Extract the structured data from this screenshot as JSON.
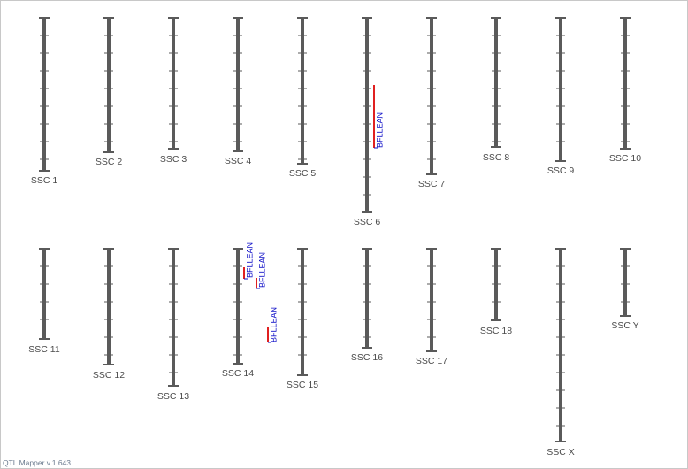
{
  "footer": "QTL Mapper v.1.643",
  "colors": {
    "chromosome": "#5a5a5a",
    "label": "#4a4a4a",
    "qtl_bar": "#e02020",
    "qtl_label": "#1010c8"
  },
  "chromosomes": [
    {
      "label": "SSC 1"
    },
    {
      "label": "SSC 2"
    },
    {
      "label": "SSC 3"
    },
    {
      "label": "SSC 4"
    },
    {
      "label": "SSC 5"
    },
    {
      "label": "SSC 6"
    },
    {
      "label": "SSC 7"
    },
    {
      "label": "SSC 8"
    },
    {
      "label": "SSC 9"
    },
    {
      "label": "SSC 10"
    },
    {
      "label": "SSC 11"
    },
    {
      "label": "SSC 12"
    },
    {
      "label": "SSC 13"
    },
    {
      "label": "SSC 14"
    },
    {
      "label": "SSC 15"
    },
    {
      "label": "SSC 16"
    },
    {
      "label": "SSC 17"
    },
    {
      "label": "SSC 18"
    },
    {
      "label": "SSC X"
    },
    {
      "label": "SSC Y"
    }
  ],
  "qtls": [
    {
      "chromosome": "SSC 6",
      "trait": "BFLLEAN"
    },
    {
      "chromosome": "SSC 14",
      "trait": "BFLLEAN"
    },
    {
      "chromosome": "SSC 14",
      "trait": "BFLLEAN"
    },
    {
      "chromosome": "SSC 14",
      "trait": "BFLLEAN"
    }
  ]
}
